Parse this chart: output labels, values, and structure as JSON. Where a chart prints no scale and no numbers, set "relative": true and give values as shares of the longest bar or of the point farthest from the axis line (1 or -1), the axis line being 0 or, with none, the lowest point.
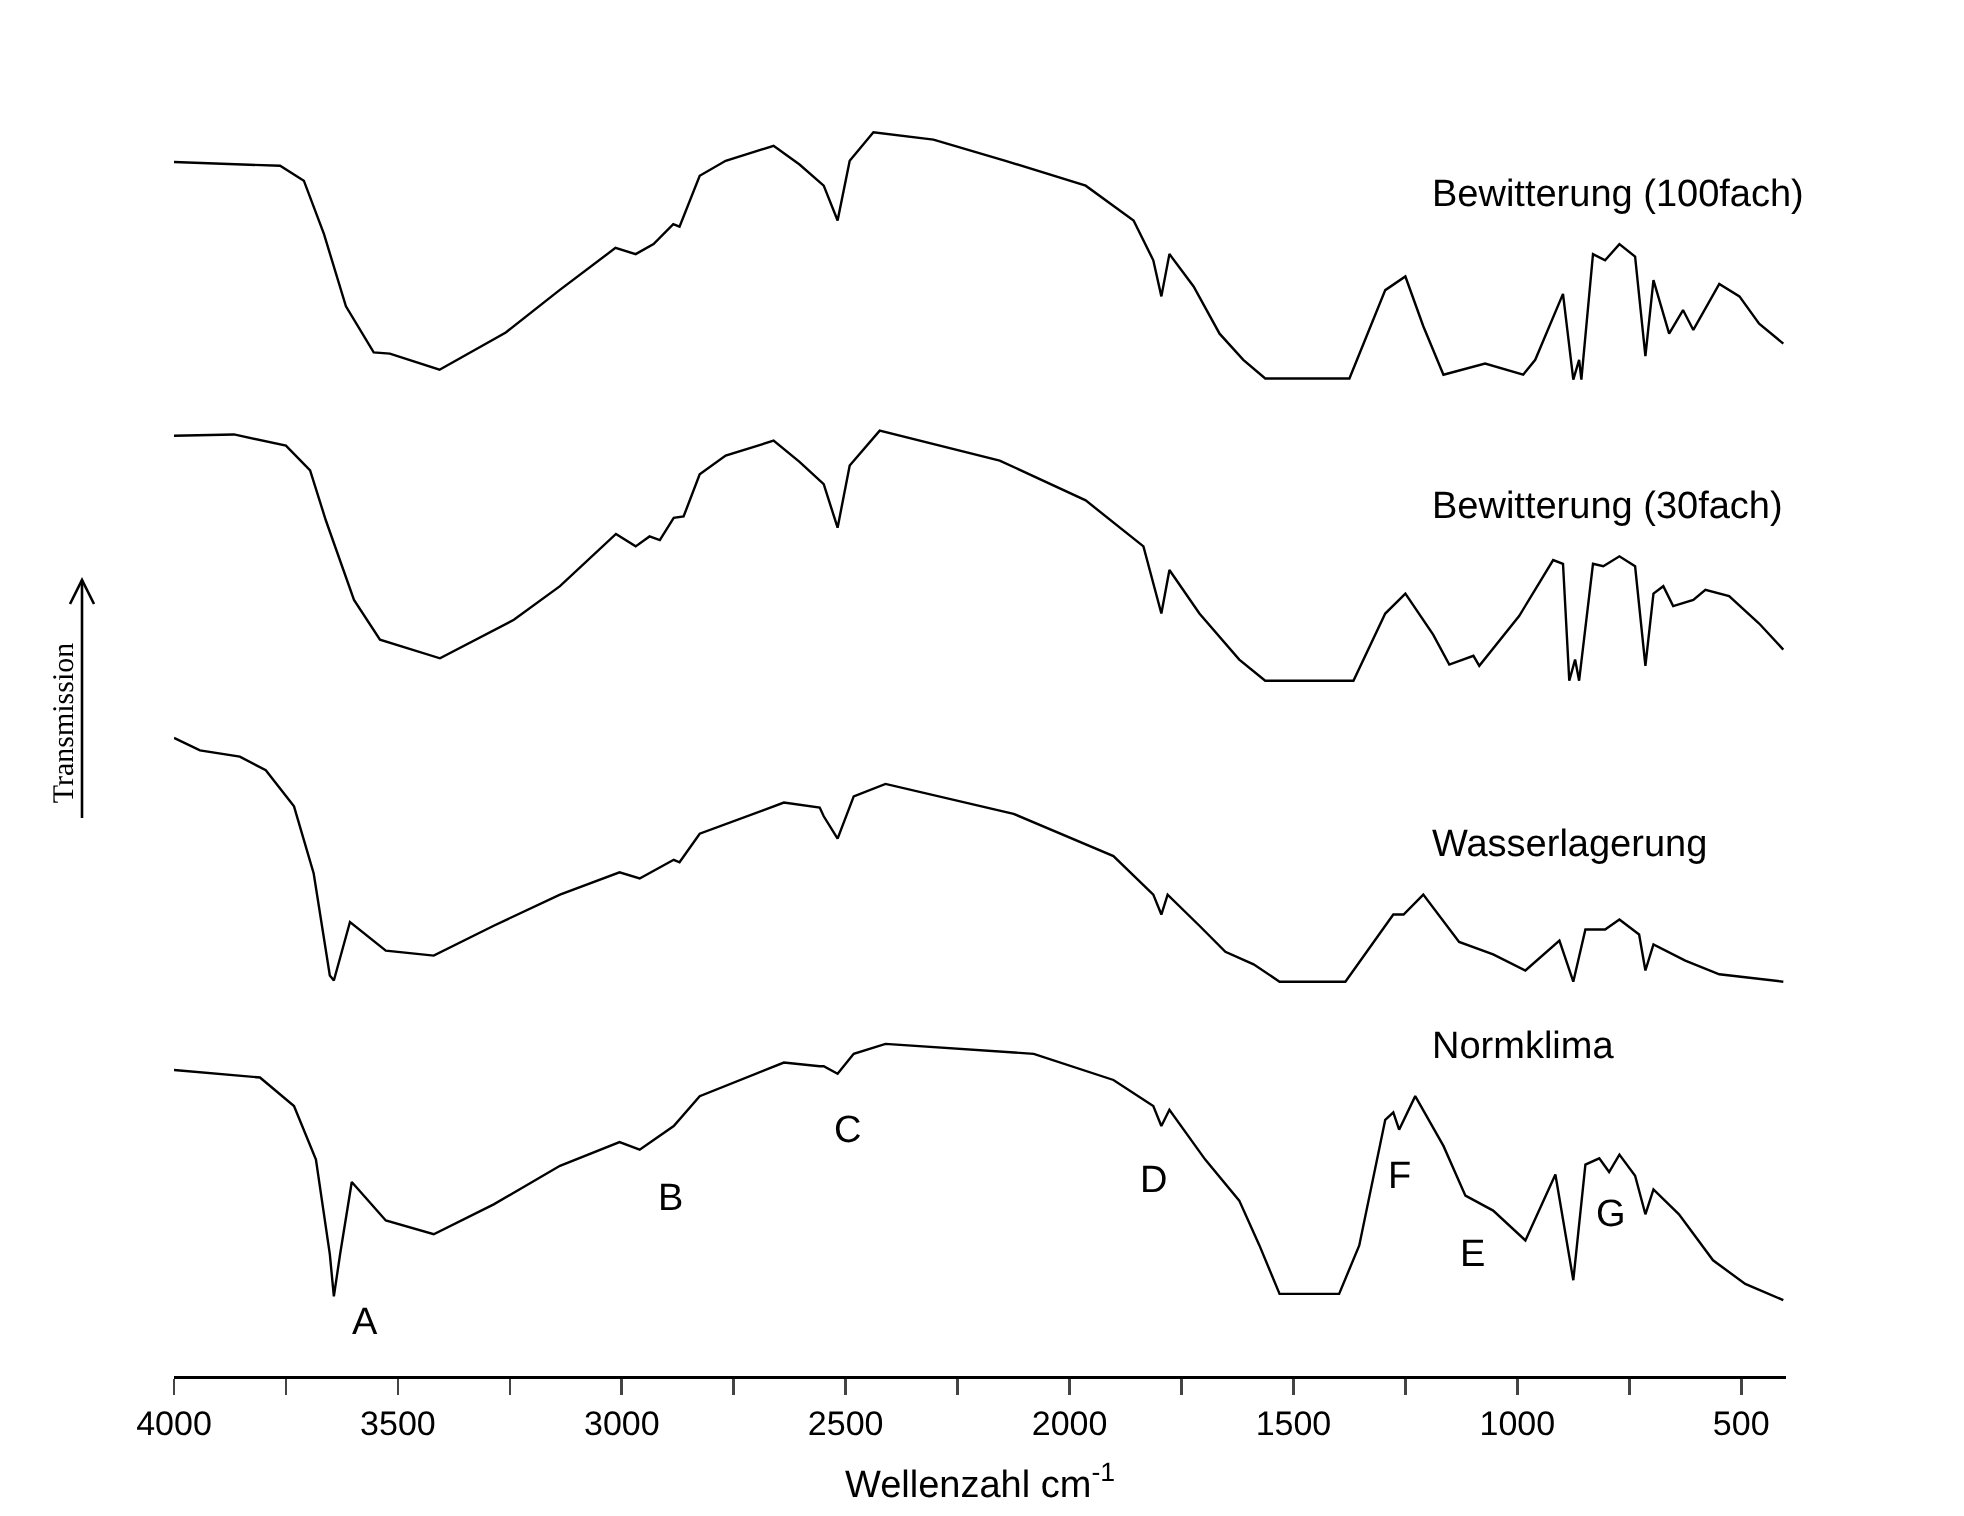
{
  "chart_data": {
    "type": "line",
    "relative": true,
    "xlabel": "Wellenzahl cm$^{-1}$",
    "ylabel": "Transmission",
    "xlim": [
      4000,
      400
    ],
    "xticks": [
      4000,
      {
        "value": 3750,
        "label": null
      },
      3500,
      {
        "value": 3250,
        "label": null
      },
      3000,
      {
        "value": 2750,
        "label": null
      },
      2500,
      {
        "value": 2250,
        "label": null
      },
      2000,
      {
        "value": 1750,
        "label": null
      },
      1500,
      {
        "value": 1250,
        "label": null
      },
      1000,
      {
        "value": 750,
        "label": null
      },
      500
    ],
    "series": [
      {
        "name": "Bewitterung (100fach)",
        "color": "#000000",
        "x": [
          4000,
          3763,
          3710,
          3665,
          3616,
          3554,
          3518,
          3407,
          3259,
          3139,
          3014,
          2969,
          2929,
          2885,
          2871,
          2826,
          2768,
          2661,
          2603,
          2549,
          2518,
          2491,
          2438,
          2304,
          2143,
          1964,
          1857,
          1813,
          1795,
          1777,
          1723,
          1665,
          1612,
          1563,
          1375,
          1295,
          1250,
          1210,
          1165,
          1072,
          987,
          960,
          898,
          875,
          862,
          857,
          831,
          804,
          772,
          737,
          714,
          696,
          661,
          630,
          607,
          549,
          504,
          460,
          406
        ],
        "values": [
          0.976,
          0.973,
          0.961,
          0.918,
          0.86,
          0.823,
          0.822,
          0.809,
          0.839,
          0.873,
          0.907,
          0.902,
          0.91,
          0.926,
          0.924,
          0.965,
          0.977,
          0.989,
          0.974,
          0.957,
          0.929,
          0.977,
          1.0,
          0.994,
          0.977,
          0.957,
          0.929,
          0.897,
          0.868,
          0.902,
          0.876,
          0.838,
          0.817,
          0.802,
          0.802,
          0.873,
          0.884,
          0.844,
          0.805,
          0.814,
          0.805,
          0.817,
          0.87,
          0.801,
          0.817,
          0.801,
          0.902,
          0.897,
          0.91,
          0.9,
          0.82,
          0.881,
          0.838,
          0.857,
          0.841,
          0.878,
          0.868,
          0.846,
          0.83
        ]
      },
      {
        "name": "Bewitterung (30fach)",
        "color": "#000000",
        "x": [
          4000,
          3866,
          3750,
          3696,
          3661,
          3598,
          3540,
          3406,
          3241,
          3138,
          3013,
          2969,
          2938,
          2915,
          2884,
          2862,
          2826,
          2768,
          2661,
          2603,
          2549,
          2518,
          2491,
          2424,
          2156,
          1964,
          1835,
          1795,
          1777,
          1710,
          1621,
          1563,
          1366,
          1295,
          1250,
          1188,
          1152,
          1098,
          1085,
          996,
          920,
          898,
          884,
          871,
          862,
          831,
          808,
          772,
          737,
          714,
          696,
          674,
          652,
          607,
          580,
          527,
          460,
          406
        ],
        "values": [
          0.756,
          0.757,
          0.748,
          0.728,
          0.688,
          0.624,
          0.592,
          0.577,
          0.608,
          0.635,
          0.677,
          0.667,
          0.675,
          0.672,
          0.69,
          0.691,
          0.725,
          0.74,
          0.752,
          0.735,
          0.717,
          0.682,
          0.732,
          0.76,
          0.736,
          0.704,
          0.667,
          0.613,
          0.648,
          0.613,
          0.576,
          0.559,
          0.559,
          0.613,
          0.629,
          0.596,
          0.572,
          0.579,
          0.571,
          0.611,
          0.656,
          0.653,
          0.559,
          0.576,
          0.559,
          0.653,
          0.651,
          0.659,
          0.651,
          0.571,
          0.629,
          0.635,
          0.619,
          0.624,
          0.632,
          0.627,
          0.605,
          0.584
        ]
      },
      {
        "name": "Wasserlagerung",
        "color": "#000000",
        "x": [
          4000,
          3942,
          3853,
          3795,
          3732,
          3688,
          3652,
          3643,
          3607,
          3527,
          3420,
          3286,
          3138,
          3005,
          2960,
          2884,
          2871,
          2826,
          2638,
          2558,
          2549,
          2518,
          2482,
          2411,
          2125,
          1902,
          1813,
          1795,
          1781,
          1710,
          1652,
          1589,
          1531,
          1384,
          1277,
          1254,
          1210,
          1130,
          1054,
          982,
          906,
          875,
          848,
          804,
          772,
          728,
          714,
          696,
          625,
          549,
          406
        ],
        "values": [
          0.513,
          0.503,
          0.498,
          0.487,
          0.458,
          0.404,
          0.322,
          0.318,
          0.365,
          0.342,
          0.338,
          0.362,
          0.387,
          0.405,
          0.4,
          0.415,
          0.413,
          0.436,
          0.461,
          0.457,
          0.45,
          0.432,
          0.466,
          0.476,
          0.452,
          0.418,
          0.387,
          0.371,
          0.387,
          0.362,
          0.341,
          0.331,
          0.317,
          0.317,
          0.371,
          0.371,
          0.387,
          0.349,
          0.339,
          0.326,
          0.35,
          0.317,
          0.359,
          0.359,
          0.367,
          0.355,
          0.326,
          0.347,
          0.334,
          0.323,
          0.317
        ]
      },
      {
        "name": "Normklima",
        "color": "#000000",
        "x": [
          4000,
          3808,
          3732,
          3683,
          3652,
          3643,
          3629,
          3603,
          3527,
          3420,
          3286,
          3138,
          3005,
          2960,
          2884,
          2826,
          2638,
          2558,
          2549,
          2518,
          2482,
          2411,
          2080,
          1902,
          1813,
          1795,
          1777,
          1697,
          1621,
          1576,
          1531,
          1398,
          1353,
          1295,
          1277,
          1264,
          1228,
          1165,
          1116,
          1054,
          982,
          915,
          875,
          848,
          817,
          795,
          772,
          737,
          714,
          696,
          639,
          563,
          491,
          406
        ],
        "values": [
          0.246,
          0.24,
          0.217,
          0.174,
          0.098,
          0.064,
          0.098,
          0.156,
          0.125,
          0.114,
          0.138,
          0.169,
          0.188,
          0.182,
          0.201,
          0.225,
          0.252,
          0.249,
          0.249,
          0.243,
          0.259,
          0.267,
          0.259,
          0.238,
          0.217,
          0.201,
          0.214,
          0.174,
          0.141,
          0.105,
          0.066,
          0.066,
          0.105,
          0.206,
          0.212,
          0.198,
          0.225,
          0.185,
          0.145,
          0.133,
          0.109,
          0.162,
          0.077,
          0.17,
          0.175,
          0.164,
          0.178,
          0.161,
          0.13,
          0.15,
          0.13,
          0.093,
          0.074,
          0.061
        ]
      }
    ],
    "annotations": [
      "A",
      "B",
      "C",
      "D",
      "E",
      "F",
      "G"
    ]
  }
}
